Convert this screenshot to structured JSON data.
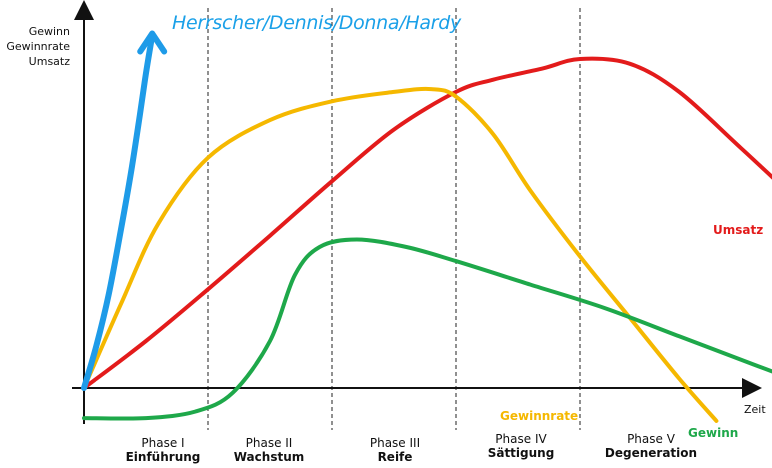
{
  "chart_data": {
    "type": "line",
    "title": "Herrscher/Dennis/Donna/Hardy",
    "ylabel": [
      "Gewinn",
      "Gewinnrate",
      "Umsatz"
    ],
    "xlabel": "Zeit",
    "phases": [
      {
        "number": "Phase I",
        "name": "Einführung"
      },
      {
        "number": "Phase II",
        "name": "Wachstum"
      },
      {
        "number": "Phase III",
        "name": "Reife"
      },
      {
        "number": "Phase IV",
        "name": "Sättigung"
      },
      {
        "number": "Phase V",
        "name": "Degeneration"
      }
    ],
    "series": [
      {
        "name": "Umsatz",
        "color": "#e31b1b",
        "points": [
          [
            0,
            0
          ],
          [
            0.5,
            0.5
          ],
          [
            1,
            1.05
          ],
          [
            1.5,
            1.62
          ],
          [
            2,
            2.2
          ],
          [
            2.5,
            2.75
          ],
          [
            3,
            3.15
          ],
          [
            3.3,
            3.28
          ],
          [
            3.7,
            3.4
          ],
          [
            4,
            3.5
          ],
          [
            4.4,
            3.45
          ],
          [
            4.8,
            3.15
          ],
          [
            5.3,
            2.55
          ],
          [
            5.8,
            1.95
          ],
          [
            6.3,
            1.45
          ],
          [
            6.8,
            1.15
          ]
        ]
      },
      {
        "name": "Gewinnrate",
        "color": "#f5b800",
        "points": [
          [
            0,
            0
          ],
          [
            0.3,
            0.9
          ],
          [
            0.6,
            1.75
          ],
          [
            1,
            2.45
          ],
          [
            1.5,
            2.85
          ],
          [
            2,
            3.05
          ],
          [
            2.5,
            3.15
          ],
          [
            2.8,
            3.18
          ],
          [
            3,
            3.1
          ],
          [
            3.3,
            2.7
          ],
          [
            3.6,
            2.1
          ],
          [
            4,
            1.4
          ],
          [
            4.4,
            0.75
          ],
          [
            4.8,
            0.1
          ],
          [
            5.1,
            -0.35
          ]
        ]
      },
      {
        "name": "Gewinn",
        "color": "#1ea84a",
        "points": [
          [
            0,
            -0.32
          ],
          [
            0.5,
            -0.32
          ],
          [
            0.9,
            -0.25
          ],
          [
            1.2,
            -0.05
          ],
          [
            1.5,
            0.5
          ],
          [
            1.7,
            1.2
          ],
          [
            1.9,
            1.5
          ],
          [
            2.2,
            1.58
          ],
          [
            2.6,
            1.5
          ],
          [
            3,
            1.35
          ],
          [
            3.6,
            1.1
          ],
          [
            4.2,
            0.85
          ],
          [
            4.8,
            0.55
          ],
          [
            5.4,
            0.25
          ],
          [
            5.8,
            0.05
          ],
          [
            6.3,
            -0.22
          ]
        ]
      },
      {
        "name": "",
        "color": "#1e9be8",
        "points": [
          [
            0,
            0
          ],
          [
            0.1,
            0.45
          ],
          [
            0.2,
            1.0
          ],
          [
            0.3,
            1.7
          ],
          [
            0.38,
            2.3
          ],
          [
            0.45,
            2.9
          ],
          [
            0.5,
            3.35
          ],
          [
            0.55,
            3.75
          ]
        ]
      }
    ],
    "series_labels": [
      "Umsatz",
      "Gewinnrate",
      "Gewinn"
    ],
    "xlim": [
      0,
      6.8
    ],
    "ylim": [
      -0.35,
      3.75
    ],
    "phase_boundaries": [
      1,
      2,
      3,
      4
    ]
  }
}
